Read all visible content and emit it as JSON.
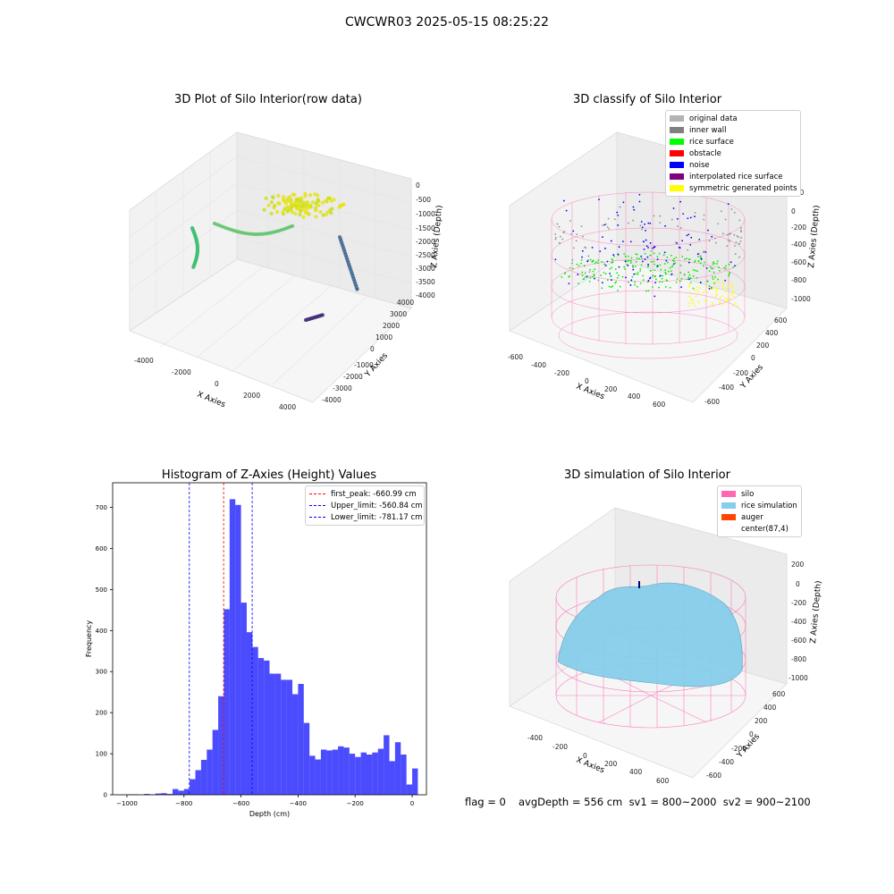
{
  "suptitle": "CWCWR03 2025-05-15 08:25:22",
  "panel1": {
    "title": "3D Plot of Silo Interior(row data)",
    "x_ticks": [
      "-4000",
      "-2000",
      "0",
      "2000",
      "4000"
    ],
    "y_ticks": [
      "-4000",
      "-3000",
      "-2000",
      "-1000",
      "0",
      "1000",
      "2000",
      "3000",
      "4000"
    ],
    "z_ticks": [
      "0",
      "-500",
      "-1000",
      "-1500",
      "-2000",
      "-2500",
      "-3000",
      "-3500",
      "-4000"
    ],
    "xlabel": "X Axies",
    "ylabel": "Y Axies",
    "zlabel": "Z Axies (Depth)"
  },
  "panel2": {
    "title": "3D classify of Silo Interior",
    "legend": [
      {
        "label": "original data",
        "color": "#b3b3b3"
      },
      {
        "label": "inner wall",
        "color": "#808080"
      },
      {
        "label": "rice surface",
        "color": "#00ff00"
      },
      {
        "label": "obstacle",
        "color": "#ff0000"
      },
      {
        "label": "noise",
        "color": "#0000ff"
      },
      {
        "label": "interpolated rice surface",
        "color": "#800080"
      },
      {
        "label": "symmetric generated points",
        "color": "#ffff00"
      }
    ],
    "x_ticks": [
      "-600",
      "-400",
      "-200",
      "0",
      "200",
      "400",
      "600"
    ],
    "y_ticks": [
      "-600",
      "-400",
      "-200",
      "0",
      "200",
      "400",
      "600"
    ],
    "z_ticks": [
      "200",
      "0",
      "-200",
      "-400",
      "-600",
      "-800",
      "-1000"
    ],
    "xlabel": "X Axies",
    "ylabel": "Y Axies",
    "zlabel": "Z Axies (Depth)"
  },
  "panel4": {
    "title": "3D simulation of Silo Interior",
    "legend": [
      {
        "label": "silo",
        "color": "#ff69b4"
      },
      {
        "label": "rice simulation",
        "color": "#87ceeb"
      },
      {
        "label": "auger",
        "color": "#ff4500"
      },
      {
        "label": "center(87,4)",
        "color": "#ffffff"
      }
    ],
    "x_ticks": [
      "-400",
      "-200",
      "0",
      "200",
      "400",
      "600"
    ],
    "y_ticks": [
      "-600",
      "-400",
      "-200",
      "0",
      "200",
      "400",
      "600"
    ],
    "z_ticks": [
      "200",
      "0",
      "-200",
      "-400",
      "-600",
      "-800",
      "-1000"
    ],
    "xlabel": "X Axies",
    "ylabel": "Y Axies",
    "zlabel": "Z Axies (Depth)"
  },
  "footer": {
    "flag": "flag = 0",
    "stats": "avgDepth = 556 cm  sv1 = 800~2000  sv2 = 900~2100"
  },
  "chart_data": {
    "type": "bar",
    "title": "Histogram of Z-Axies (Height) Values",
    "xlabel": "Depth (cm)",
    "ylabel": "Frequency",
    "xlim": [
      -1050,
      50
    ],
    "ylim": [
      0,
      760
    ],
    "x_ticks": [
      -1000,
      -800,
      -600,
      -400,
      -200,
      0
    ],
    "y_ticks": [
      0,
      100,
      200,
      300,
      400,
      500,
      600,
      700
    ],
    "bar_color": "#0000ff",
    "bin_edges_start": -1000,
    "bin_width": 20,
    "values": [
      1,
      1,
      0,
      2,
      1,
      3,
      4,
      2,
      14,
      10,
      14,
      38,
      60,
      85,
      110,
      158,
      240,
      452,
      720,
      706,
      468,
      396,
      360,
      333,
      327,
      295,
      295,
      280,
      280,
      245,
      270,
      175,
      95,
      86,
      110,
      108,
      110,
      118,
      115,
      100,
      92,
      103,
      98,
      103,
      112,
      145,
      82,
      128,
      98,
      25,
      64
    ],
    "reference_lines": [
      {
        "label": "first_peak: -660.99 cm",
        "x": -660.99,
        "color": "#ff0000"
      },
      {
        "label": "Upper_limit: -560.84 cm",
        "x": -560.84,
        "color": "#0000ff"
      },
      {
        "label": "Lower_limit: -781.17 cm",
        "x": -781.17,
        "color": "#0000ff"
      }
    ],
    "legend_position": "upper right"
  }
}
